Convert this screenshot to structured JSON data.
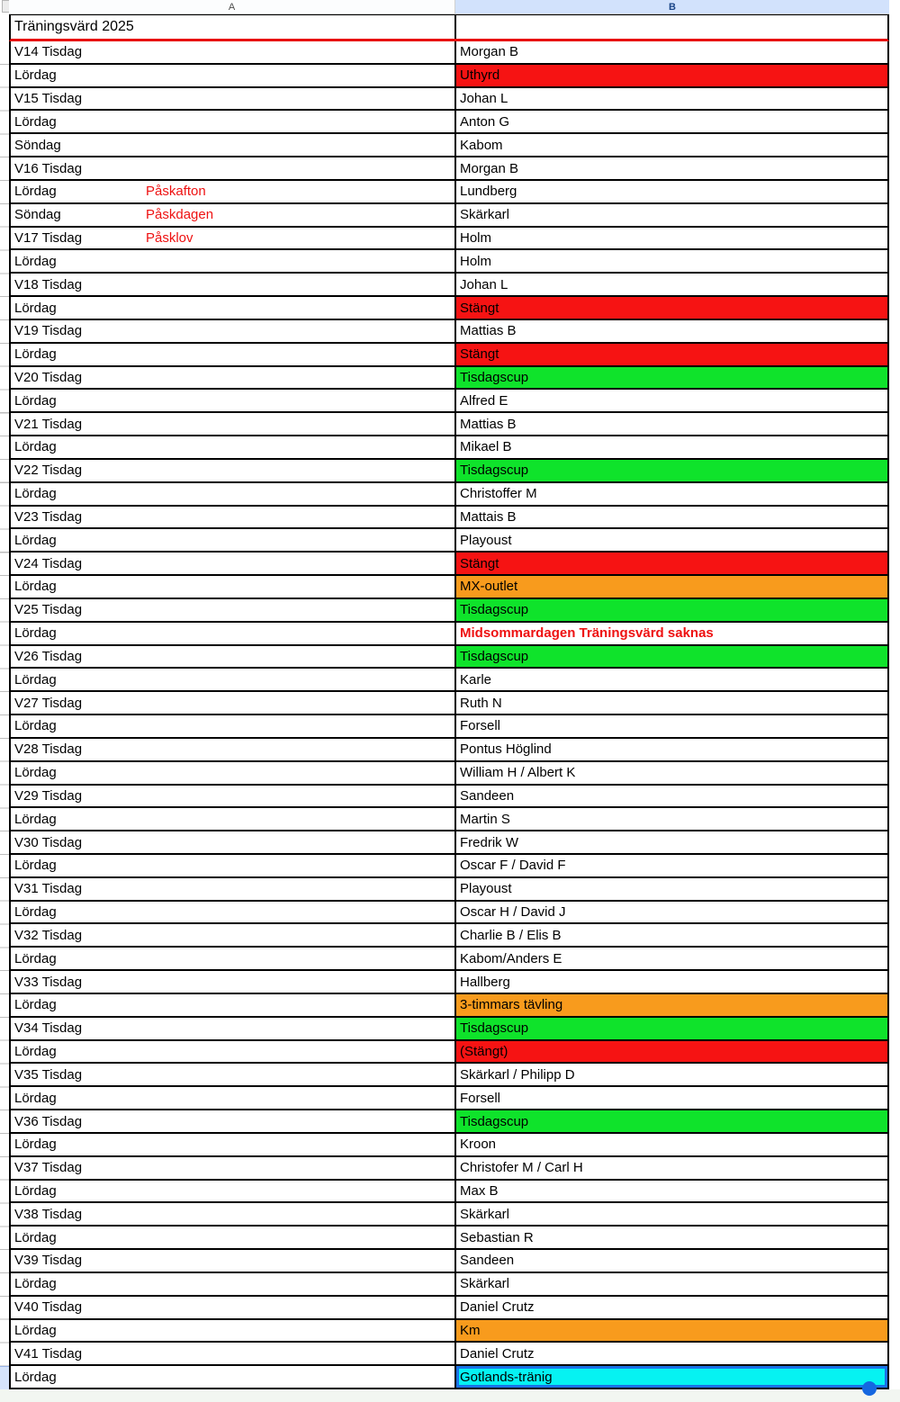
{
  "sheet": {
    "column_headers": {
      "a": "A",
      "b": "B"
    },
    "title": "Träningsvärd 2025",
    "colors": {
      "red_fill": "#f61313",
      "green_fill": "#0fe32b",
      "orange_fill": "#f89b1d",
      "cyan_fill": "#06f2f2",
      "red_text": "#ee1111",
      "title_underline_red": "#e8100c",
      "selection_blue": "#1a73e8",
      "column_b_header_bg": "#d2e2fc",
      "column_b_header_text": "#1b4587"
    },
    "rows": [
      {
        "day": "V14 Tisdag",
        "host": "Morgan B"
      },
      {
        "day": "Lördag",
        "host": "Uthyrd",
        "fill": "red"
      },
      {
        "day": "V15 Tisdag",
        "host": "Johan L"
      },
      {
        "day": "Lördag",
        "host": "Anton G"
      },
      {
        "day": "Söndag",
        "host": "Kabom"
      },
      {
        "day": "V16 Tisdag",
        "host": "Morgan B"
      },
      {
        "day": "Lördag",
        "note": "Påskafton",
        "host": "Lundberg"
      },
      {
        "day": "Söndag",
        "note": "Påskdagen",
        "host": "Skärkarl"
      },
      {
        "day": "V17 Tisdag",
        "note": "Påsklov",
        "host": "Holm"
      },
      {
        "day": "Lördag",
        "host": "Holm"
      },
      {
        "day": "V18 Tisdag",
        "host": "Johan L"
      },
      {
        "day": "Lördag",
        "host": "Stängt",
        "fill": "red"
      },
      {
        "day": "V19 Tisdag",
        "host": "Mattias B"
      },
      {
        "day": "Lördag",
        "host": "Stängt",
        "fill": "red"
      },
      {
        "day": "V20 Tisdag",
        "host": "Tisdagscup",
        "fill": "green"
      },
      {
        "day": "Lördag",
        "host": "Alfred E"
      },
      {
        "day": "V21 Tisdag",
        "host": "Mattias B"
      },
      {
        "day": "Lördag",
        "host": "Mikael B"
      },
      {
        "day": "V22 Tisdag",
        "host": "Tisdagscup",
        "fill": "green"
      },
      {
        "day": "Lördag",
        "host": "Christoffer M"
      },
      {
        "day": "V23 Tisdag",
        "host": "Mattais B"
      },
      {
        "day": "Lördag",
        "host": "Playoust"
      },
      {
        "day": "V24 Tisdag",
        "host": "Stängt",
        "fill": "red"
      },
      {
        "day": "Lördag",
        "host": "MX-outlet",
        "fill": "orange"
      },
      {
        "day": "V25 Tisdag",
        "host": "Tisdagscup",
        "fill": "green"
      },
      {
        "day": "Lördag",
        "host": "Midsommardagen Träningsvärd saknas",
        "text_style": "red-bold"
      },
      {
        "day": "V26 Tisdag",
        "host": "Tisdagscup",
        "fill": "green"
      },
      {
        "day": "Lördag",
        "host": "Karle"
      },
      {
        "day": "V27 Tisdag",
        "host": "Ruth N"
      },
      {
        "day": "Lördag",
        "host": "Forsell"
      },
      {
        "day": "V28 Tisdag",
        "host": "Pontus Höglind"
      },
      {
        "day": "Lördag",
        "host": "William H / Albert  K"
      },
      {
        "day": "V29 Tisdag",
        "host": "Sandeen"
      },
      {
        "day": "Lördag",
        "host": "Martin S"
      },
      {
        "day": "V30 Tisdag",
        "host": "Fredrik W"
      },
      {
        "day": "Lördag",
        "host": "Oscar F / David F"
      },
      {
        "day": "V31 Tisdag",
        "host": "Playoust"
      },
      {
        "day": "Lördag",
        "host": "Oscar H / David J"
      },
      {
        "day": "V32 Tisdag",
        "host": "Charlie B / Elis B"
      },
      {
        "day": "Lördag",
        "host": "Kabom/Anders E"
      },
      {
        "day": "V33 Tisdag",
        "host": "Hallberg"
      },
      {
        "day": "Lördag",
        "host": "3-timmars tävling",
        "fill": "orange"
      },
      {
        "day": "V34 Tisdag",
        "host": "Tisdagscup",
        "fill": "green"
      },
      {
        "day": "Lördag",
        "host": "(Stängt)",
        "fill": "red"
      },
      {
        "day": "V35 Tisdag",
        "host": "Skärkarl / Philipp D"
      },
      {
        "day": "Lördag",
        "host": "Forsell"
      },
      {
        "day": "V36 Tisdag",
        "host": "Tisdagscup",
        "fill": "green"
      },
      {
        "day": "Lördag",
        "host": "Kroon"
      },
      {
        "day": "V37 Tisdag",
        "host": "Christofer M / Carl H"
      },
      {
        "day": "Lördag",
        "host": "Max B"
      },
      {
        "day": "V38 Tisdag",
        "host": "Skärkarl"
      },
      {
        "day": "Lördag",
        "host": "Sebastian R"
      },
      {
        "day": "V39 Tisdag",
        "host": "Sandeen"
      },
      {
        "day": "Lördag",
        "host": "Skärkarl"
      },
      {
        "day": "V40 Tisdag",
        "host": "Daniel Crutz"
      },
      {
        "day": "Lördag",
        "host": "Km",
        "fill": "orange"
      },
      {
        "day": "V41 Tisdag",
        "host": "Daniel Crutz"
      },
      {
        "day": "Lördag",
        "host": "Gotlands-tränig",
        "fill": "cyan",
        "selected": true
      }
    ]
  }
}
